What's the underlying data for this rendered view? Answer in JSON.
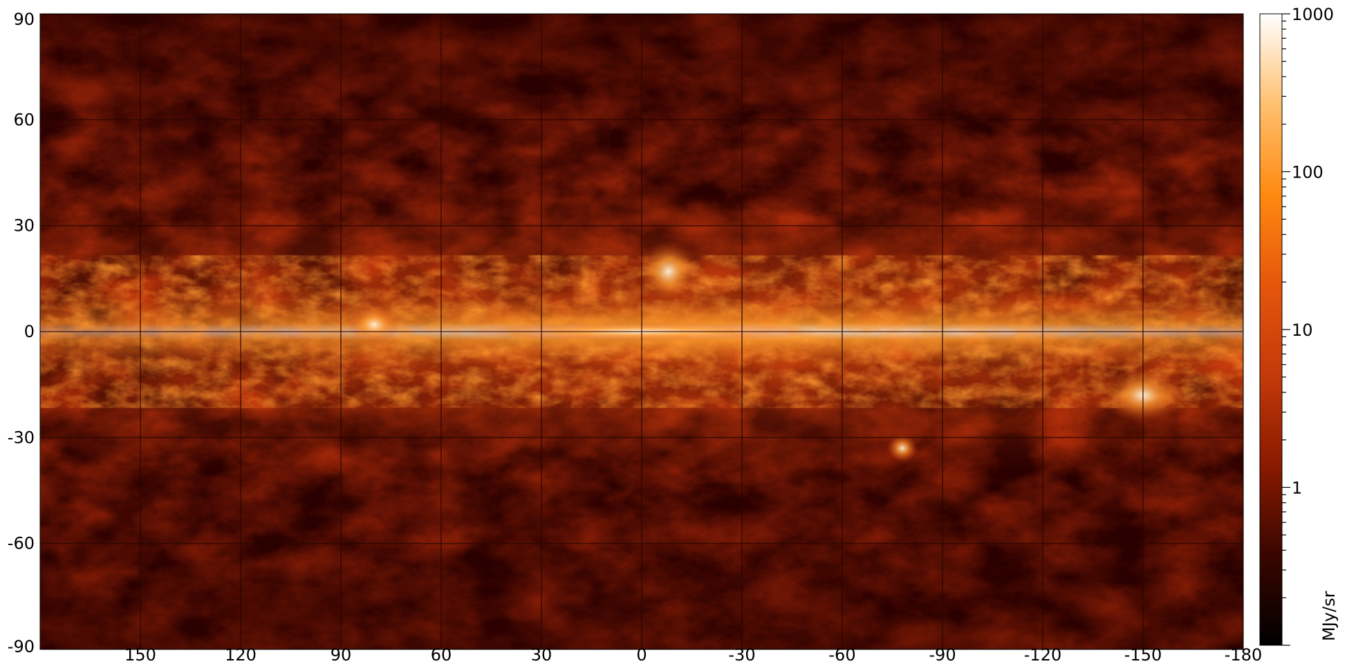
{
  "chart_data": {
    "type": "heatmap",
    "title": "",
    "xlabel": "",
    "ylabel": "",
    "xlim": [
      180,
      -180
    ],
    "ylim": [
      -90,
      90
    ],
    "x_ticks": [
      "150",
      "120",
      "90",
      "60",
      "30",
      "0",
      "-30",
      "-60",
      "-90",
      "-120",
      "-150",
      "-180"
    ],
    "x_tick_values": [
      150,
      120,
      90,
      60,
      30,
      0,
      -30,
      -60,
      -90,
      -120,
      -150,
      -180
    ],
    "y_ticks": [
      "90",
      "60",
      "30",
      "0",
      "-30",
      "-60",
      "-90"
    ],
    "y_tick_values": [
      90,
      60,
      30,
      0,
      -30,
      -60,
      -90
    ],
    "grid": true,
    "colorbar": {
      "scale": "log",
      "range": [
        0.1,
        1000
      ],
      "tick_labels": [
        "1000",
        "100",
        "10",
        "1"
      ],
      "tick_values": [
        1000,
        100,
        10,
        1
      ],
      "unit": "MJy/sr",
      "colormap": [
        "#000000",
        "#3a0600",
        "#8a1a00",
        "#c43a0a",
        "#e6560c",
        "#ff8a10",
        "#ffc070",
        "#ffffff"
      ]
    },
    "features": [
      {
        "description": "bright band along latitude 0",
        "value_range": [
          20,
          1000
        ]
      },
      {
        "description": "bright patch near longitude -150, latitude -18"
      },
      {
        "description": "small bright patch near longitude -78, latitude -33"
      }
    ]
  }
}
